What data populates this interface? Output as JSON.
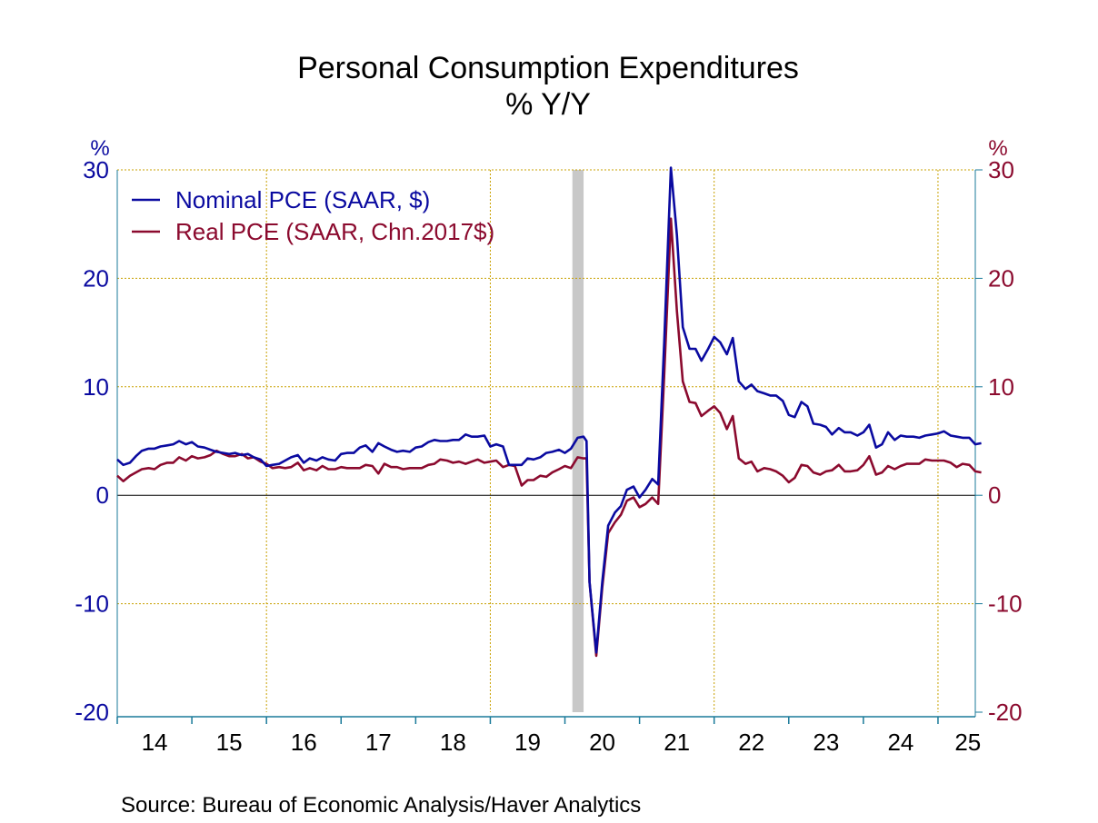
{
  "chart_data": {
    "type": "line",
    "title": "Personal Consumption Expenditures",
    "subtitle": "% Y/Y",
    "y_unit_left": "%",
    "y_unit_right": "%",
    "ylim": [
      -20,
      30
    ],
    "y_ticks": [
      30,
      20,
      10,
      0,
      -10,
      -20
    ],
    "xlim": [
      2014.0,
      2025.5
    ],
    "x_tick_labels": [
      "14",
      "15",
      "16",
      "17",
      "18",
      "19",
      "20",
      "21",
      "22",
      "23",
      "24",
      "25"
    ],
    "grid": true,
    "legend_position": "top-left",
    "recession_band": [
      2020.1,
      2020.25
    ],
    "source": "Source:  Bureau of Economic Analysis/Haver Analytics",
    "colors": {
      "nominal": "#0a0aa0",
      "real": "#8b0a2e",
      "grid": "#c8a000",
      "axis": "#1a7a9a",
      "recession": "#c8c8c8"
    },
    "series": [
      {
        "name": "Nominal PCE (SAAR, $)",
        "color": "#0a0aa0",
        "points": [
          [
            2014.0,
            3.3
          ],
          [
            2014.08,
            2.8
          ],
          [
            2014.17,
            3.0
          ],
          [
            2014.25,
            3.6
          ],
          [
            2014.33,
            4.1
          ],
          [
            2014.42,
            4.3
          ],
          [
            2014.5,
            4.3
          ],
          [
            2014.58,
            4.5
          ],
          [
            2014.67,
            4.6
          ],
          [
            2014.75,
            4.7
          ],
          [
            2014.83,
            5.0
          ],
          [
            2014.92,
            4.7
          ],
          [
            2015.0,
            4.9
          ],
          [
            2015.08,
            4.5
          ],
          [
            2015.17,
            4.4
          ],
          [
            2015.25,
            4.2
          ],
          [
            2015.33,
            4.0
          ],
          [
            2015.42,
            3.9
          ],
          [
            2015.5,
            3.8
          ],
          [
            2015.58,
            3.9
          ],
          [
            2015.67,
            3.7
          ],
          [
            2015.75,
            3.8
          ],
          [
            2015.83,
            3.5
          ],
          [
            2015.92,
            3.3
          ],
          [
            2016.0,
            2.7
          ],
          [
            2016.08,
            2.8
          ],
          [
            2016.17,
            2.9
          ],
          [
            2016.25,
            3.2
          ],
          [
            2016.33,
            3.5
          ],
          [
            2016.42,
            3.7
          ],
          [
            2016.5,
            3.0
          ],
          [
            2016.58,
            3.4
          ],
          [
            2016.67,
            3.2
          ],
          [
            2016.75,
            3.5
          ],
          [
            2016.83,
            3.3
          ],
          [
            2016.92,
            3.2
          ],
          [
            2017.0,
            3.8
          ],
          [
            2017.08,
            3.9
          ],
          [
            2017.17,
            3.9
          ],
          [
            2017.25,
            4.4
          ],
          [
            2017.33,
            4.6
          ],
          [
            2017.42,
            4.0
          ],
          [
            2017.5,
            4.8
          ],
          [
            2017.58,
            4.5
          ],
          [
            2017.67,
            4.2
          ],
          [
            2017.75,
            4.0
          ],
          [
            2017.83,
            4.1
          ],
          [
            2017.92,
            4.0
          ],
          [
            2018.0,
            4.4
          ],
          [
            2018.08,
            4.5
          ],
          [
            2018.17,
            4.9
          ],
          [
            2018.25,
            5.1
          ],
          [
            2018.33,
            5.0
          ],
          [
            2018.42,
            5.0
          ],
          [
            2018.5,
            5.1
          ],
          [
            2018.58,
            5.1
          ],
          [
            2018.67,
            5.6
          ],
          [
            2018.75,
            5.4
          ],
          [
            2018.83,
            5.4
          ],
          [
            2018.92,
            5.5
          ],
          [
            2019.0,
            4.5
          ],
          [
            2019.08,
            4.7
          ],
          [
            2019.17,
            4.5
          ],
          [
            2019.25,
            2.8
          ],
          [
            2019.33,
            2.8
          ],
          [
            2019.42,
            2.8
          ],
          [
            2019.5,
            3.4
          ],
          [
            2019.58,
            3.3
          ],
          [
            2019.67,
            3.5
          ],
          [
            2019.75,
            3.9
          ],
          [
            2019.83,
            4.0
          ],
          [
            2019.92,
            4.2
          ],
          [
            2020.0,
            3.9
          ],
          [
            2020.08,
            4.3
          ],
          [
            2020.17,
            5.3
          ],
          [
            2020.25,
            5.4
          ],
          [
            2020.29,
            5.0
          ],
          [
            2020.33,
            -8.0
          ],
          [
            2020.42,
            -14.5
          ],
          [
            2020.5,
            -8.0
          ],
          [
            2020.58,
            -2.8
          ],
          [
            2020.67,
            -1.6
          ],
          [
            2020.75,
            -1.0
          ],
          [
            2020.83,
            0.5
          ],
          [
            2020.92,
            0.8
          ],
          [
            2021.0,
            -0.2
          ],
          [
            2021.08,
            0.5
          ],
          [
            2021.17,
            1.5
          ],
          [
            2021.25,
            1.0
          ],
          [
            2021.33,
            14.0
          ],
          [
            2021.42,
            30.2
          ],
          [
            2021.5,
            24.0
          ],
          [
            2021.58,
            15.5
          ],
          [
            2021.67,
            13.5
          ],
          [
            2021.75,
            13.5
          ],
          [
            2021.83,
            12.4
          ],
          [
            2021.92,
            13.5
          ],
          [
            2022.0,
            14.6
          ],
          [
            2022.08,
            14.1
          ],
          [
            2022.17,
            13.0
          ],
          [
            2022.25,
            14.5
          ],
          [
            2022.33,
            10.5
          ],
          [
            2022.42,
            9.8
          ],
          [
            2022.5,
            10.2
          ],
          [
            2022.58,
            9.6
          ],
          [
            2022.67,
            9.4
          ],
          [
            2022.75,
            9.2
          ],
          [
            2022.83,
            9.2
          ],
          [
            2022.92,
            8.7
          ],
          [
            2023.0,
            7.4
          ],
          [
            2023.08,
            7.2
          ],
          [
            2023.17,
            8.6
          ],
          [
            2023.25,
            8.2
          ],
          [
            2023.33,
            6.6
          ],
          [
            2023.42,
            6.5
          ],
          [
            2023.5,
            6.3
          ],
          [
            2023.58,
            5.6
          ],
          [
            2023.67,
            6.2
          ],
          [
            2023.75,
            5.8
          ],
          [
            2023.83,
            5.8
          ],
          [
            2023.92,
            5.5
          ],
          [
            2024.0,
            5.8
          ],
          [
            2024.08,
            6.5
          ],
          [
            2024.17,
            4.4
          ],
          [
            2024.25,
            4.7
          ],
          [
            2024.33,
            5.8
          ],
          [
            2024.42,
            5.1
          ],
          [
            2024.5,
            5.5
          ],
          [
            2024.58,
            5.4
          ],
          [
            2024.67,
            5.4
          ],
          [
            2024.75,
            5.3
          ],
          [
            2024.83,
            5.5
          ],
          [
            2024.92,
            5.6
          ],
          [
            2025.0,
            5.7
          ],
          [
            2025.08,
            5.9
          ],
          [
            2025.17,
            5.5
          ],
          [
            2025.25,
            5.4
          ],
          [
            2025.33,
            5.3
          ],
          [
            2025.42,
            5.3
          ],
          [
            2025.5,
            4.7
          ],
          [
            2025.58,
            4.8
          ]
        ]
      },
      {
        "name": "Real PCE (SAAR, Chn.2017$)",
        "color": "#8b0a2e",
        "points": [
          [
            2014.0,
            1.8
          ],
          [
            2014.08,
            1.3
          ],
          [
            2014.17,
            1.8
          ],
          [
            2014.25,
            2.1
          ],
          [
            2014.33,
            2.4
          ],
          [
            2014.42,
            2.5
          ],
          [
            2014.5,
            2.4
          ],
          [
            2014.58,
            2.8
          ],
          [
            2014.67,
            3.0
          ],
          [
            2014.75,
            3.0
          ],
          [
            2014.83,
            3.5
          ],
          [
            2014.92,
            3.2
          ],
          [
            2015.0,
            3.6
          ],
          [
            2015.08,
            3.4
          ],
          [
            2015.17,
            3.5
          ],
          [
            2015.25,
            3.7
          ],
          [
            2015.33,
            4.1
          ],
          [
            2015.42,
            3.8
          ],
          [
            2015.5,
            3.6
          ],
          [
            2015.58,
            3.6
          ],
          [
            2015.67,
            3.8
          ],
          [
            2015.75,
            3.4
          ],
          [
            2015.83,
            3.5
          ],
          [
            2015.92,
            3.1
          ],
          [
            2016.0,
            2.9
          ],
          [
            2016.08,
            2.5
          ],
          [
            2016.17,
            2.6
          ],
          [
            2016.25,
            2.5
          ],
          [
            2016.33,
            2.6
          ],
          [
            2016.42,
            3.0
          ],
          [
            2016.5,
            2.3
          ],
          [
            2016.58,
            2.5
          ],
          [
            2016.67,
            2.3
          ],
          [
            2016.75,
            2.7
          ],
          [
            2016.83,
            2.4
          ],
          [
            2016.92,
            2.4
          ],
          [
            2017.0,
            2.6
          ],
          [
            2017.08,
            2.5
          ],
          [
            2017.17,
            2.5
          ],
          [
            2017.25,
            2.5
          ],
          [
            2017.33,
            2.8
          ],
          [
            2017.42,
            2.7
          ],
          [
            2017.5,
            2.0
          ],
          [
            2017.58,
            2.9
          ],
          [
            2017.67,
            2.6
          ],
          [
            2017.75,
            2.6
          ],
          [
            2017.83,
            2.4
          ],
          [
            2017.92,
            2.5
          ],
          [
            2018.0,
            2.5
          ],
          [
            2018.08,
            2.5
          ],
          [
            2018.17,
            2.8
          ],
          [
            2018.25,
            2.9
          ],
          [
            2018.33,
            3.3
          ],
          [
            2018.42,
            3.2
          ],
          [
            2018.5,
            3.0
          ],
          [
            2018.58,
            3.1
          ],
          [
            2018.67,
            2.9
          ],
          [
            2018.75,
            3.1
          ],
          [
            2018.83,
            3.3
          ],
          [
            2018.92,
            3.0
          ],
          [
            2019.0,
            3.1
          ],
          [
            2019.08,
            3.2
          ],
          [
            2019.17,
            2.6
          ],
          [
            2019.25,
            2.8
          ],
          [
            2019.33,
            2.7
          ],
          [
            2019.42,
            0.9
          ],
          [
            2019.5,
            1.4
          ],
          [
            2019.58,
            1.4
          ],
          [
            2019.67,
            1.8
          ],
          [
            2019.75,
            1.7
          ],
          [
            2019.83,
            2.1
          ],
          [
            2019.92,
            2.4
          ],
          [
            2020.0,
            2.7
          ],
          [
            2020.08,
            2.5
          ],
          [
            2020.17,
            3.5
          ],
          [
            2020.25,
            3.4
          ],
          [
            2020.29,
            3.4
          ],
          [
            2020.33,
            -8.0
          ],
          [
            2020.42,
            -14.8
          ],
          [
            2020.5,
            -8.5
          ],
          [
            2020.58,
            -3.5
          ],
          [
            2020.67,
            -2.5
          ],
          [
            2020.75,
            -1.8
          ],
          [
            2020.83,
            -0.5
          ],
          [
            2020.92,
            -0.2
          ],
          [
            2021.0,
            -1.1
          ],
          [
            2021.08,
            -0.8
          ],
          [
            2021.17,
            -0.2
          ],
          [
            2021.25,
            -0.8
          ],
          [
            2021.33,
            11.0
          ],
          [
            2021.42,
            25.5
          ],
          [
            2021.5,
            17.0
          ],
          [
            2021.58,
            10.5
          ],
          [
            2021.67,
            8.6
          ],
          [
            2021.75,
            8.5
          ],
          [
            2021.83,
            7.3
          ],
          [
            2021.92,
            7.8
          ],
          [
            2022.0,
            8.2
          ],
          [
            2022.08,
            7.6
          ],
          [
            2022.17,
            6.1
          ],
          [
            2022.25,
            7.3
          ],
          [
            2022.33,
            3.4
          ],
          [
            2022.42,
            2.9
          ],
          [
            2022.5,
            3.1
          ],
          [
            2022.58,
            2.2
          ],
          [
            2022.67,
            2.5
          ],
          [
            2022.75,
            2.4
          ],
          [
            2022.83,
            2.2
          ],
          [
            2022.92,
            1.8
          ],
          [
            2023.0,
            1.2
          ],
          [
            2023.08,
            1.6
          ],
          [
            2023.17,
            2.8
          ],
          [
            2023.25,
            2.7
          ],
          [
            2023.33,
            2.1
          ],
          [
            2023.42,
            1.9
          ],
          [
            2023.5,
            2.2
          ],
          [
            2023.58,
            2.3
          ],
          [
            2023.67,
            2.8
          ],
          [
            2023.75,
            2.2
          ],
          [
            2023.83,
            2.2
          ],
          [
            2023.92,
            2.3
          ],
          [
            2024.0,
            2.8
          ],
          [
            2024.08,
            3.6
          ],
          [
            2024.17,
            1.9
          ],
          [
            2024.25,
            2.1
          ],
          [
            2024.33,
            2.7
          ],
          [
            2024.42,
            2.4
          ],
          [
            2024.5,
            2.7
          ],
          [
            2024.58,
            2.9
          ],
          [
            2024.67,
            2.9
          ],
          [
            2024.75,
            2.9
          ],
          [
            2024.83,
            3.3
          ],
          [
            2024.92,
            3.2
          ],
          [
            2025.0,
            3.2
          ],
          [
            2025.08,
            3.2
          ],
          [
            2025.17,
            3.0
          ],
          [
            2025.25,
            2.6
          ],
          [
            2025.33,
            2.9
          ],
          [
            2025.42,
            2.8
          ],
          [
            2025.5,
            2.2
          ],
          [
            2025.58,
            2.1
          ]
        ]
      }
    ]
  }
}
